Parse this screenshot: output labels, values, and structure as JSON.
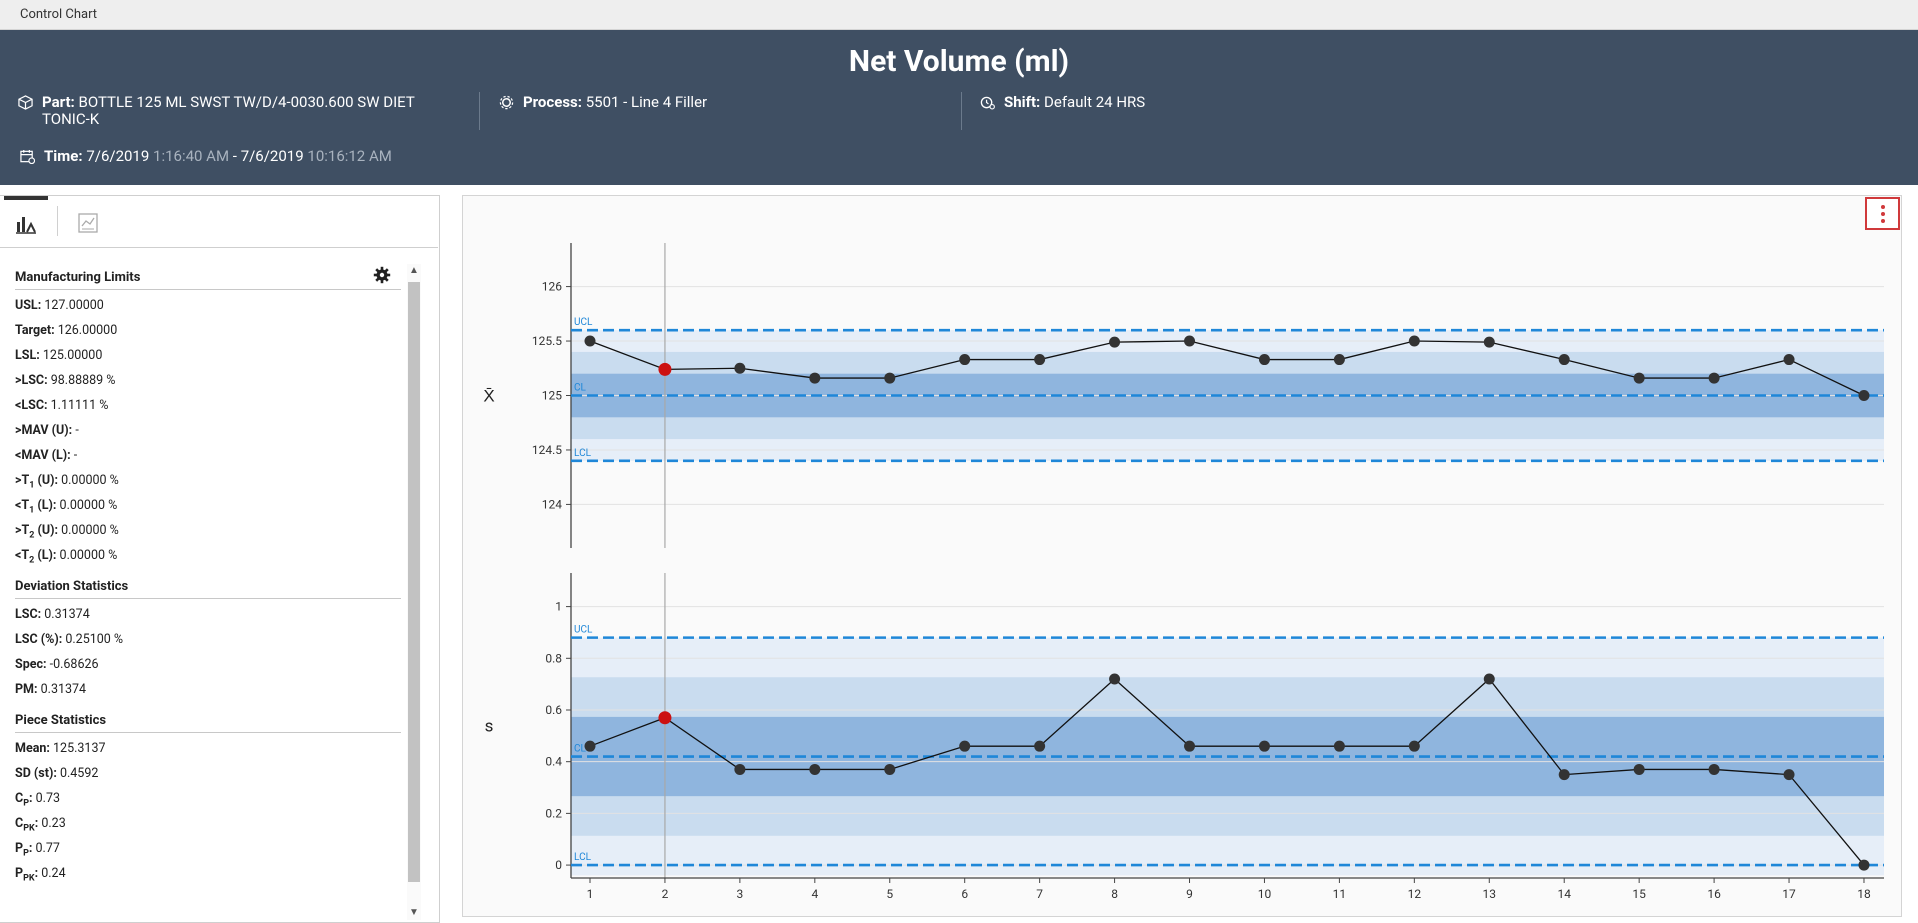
{
  "window": {
    "title": "Control Chart"
  },
  "header": {
    "title": "Net Volume (ml)",
    "part_label": "Part:",
    "part_value": "BOTTLE 125 ML SWST TW/D/4-0030.600 SW DIET",
    "part_value_line2": "TONIC-K",
    "process_label": "Process:",
    "process_value": "5501 - Line 4 Filler",
    "shift_label": "Shift:",
    "shift_value": "Default 24 HRS",
    "time_label": "Time:",
    "time_start_date": "7/6/2019",
    "time_start_time": "1:16:40 AM",
    "time_sep": "-",
    "time_end_date": "7/6/2019",
    "time_end_time": "10:16:12 AM"
  },
  "sidebar": {
    "sections": [
      {
        "title": "Manufacturing Limits",
        "rows": [
          {
            "label": "USL:",
            "value": "127.00000"
          },
          {
            "label": "Target:",
            "value": "126.00000"
          },
          {
            "label": "LSL:",
            "value": "125.00000"
          },
          {
            "label": ">LSC:",
            "value": "98.88889 %"
          },
          {
            "label": "<LSC:",
            "value": "1.11111 %"
          },
          {
            "label": ">MAV (U):",
            "value": "-"
          },
          {
            "label": "<MAV (L):",
            "value": "-"
          },
          {
            "label": ">T",
            "sub": "1",
            "label_tail": " (U):",
            "value": "0.00000 %"
          },
          {
            "label": "<T",
            "sub": "1",
            "label_tail": " (L):",
            "value": "0.00000 %"
          },
          {
            "label": ">T",
            "sub": "2",
            "label_tail": " (U):",
            "value": "0.00000 %"
          },
          {
            "label": "<T",
            "sub": "2",
            "label_tail": " (L):",
            "value": "0.00000 %"
          }
        ]
      },
      {
        "title": "Deviation Statistics",
        "rows": [
          {
            "label": "LSC:",
            "value": "0.31374"
          },
          {
            "label": "LSC (%):",
            "value": "0.25100 %"
          },
          {
            "label": "Spec:",
            "value": "-0.68626"
          },
          {
            "label": "PM:",
            "value": "0.31374"
          }
        ]
      },
      {
        "title": "Piece Statistics",
        "rows": [
          {
            "label": "Mean:",
            "value": "125.3137"
          },
          {
            "label": "SD (st):",
            "value": "0.4592"
          },
          {
            "label": "C",
            "sub": "P",
            "label_tail": ":",
            "value": "0.73"
          },
          {
            "label": "C",
            "sub": "PK",
            "label_tail": ":",
            "value": "0.23"
          },
          {
            "label": "P",
            "sub": "P",
            "label_tail": ":",
            "value": "0.77"
          },
          {
            "label": "P",
            "sub": "PK",
            "label_tail": ":",
            "value": "0.24"
          }
        ]
      }
    ]
  },
  "colors": {
    "header_bg": "#3f4f63",
    "limit_line": "#1f87d8",
    "band_outer": "#e6eef8",
    "band_mid": "#c9dcef",
    "band_inner": "#8fb5de",
    "point": "#333333",
    "highlight_point": "#cc1111"
  },
  "chart_data": [
    {
      "type": "line",
      "title": "",
      "ylabel": "X̄",
      "xlabel": "",
      "x": [
        1,
        2,
        3,
        4,
        5,
        6,
        7,
        8,
        9,
        10,
        11,
        12,
        13,
        14,
        15,
        16,
        17,
        18
      ],
      "values": [
        125.5,
        125.24,
        125.25,
        125.16,
        125.16,
        125.33,
        125.33,
        125.49,
        125.5,
        125.33,
        125.33,
        125.5,
        125.49,
        125.33,
        125.16,
        125.16,
        125.33,
        125.0
      ],
      "highlight_index": 1,
      "ylim": [
        123.6,
        126.4
      ],
      "yticks": [
        124,
        124.5,
        125,
        125.5,
        126
      ],
      "limits": {
        "UCL": 125.6,
        "CL": 125.0,
        "LCL": 124.4
      },
      "limit_labels": [
        "UCL",
        "CL",
        "LCL"
      ],
      "grid": true
    },
    {
      "type": "line",
      "title": "",
      "ylabel": "s",
      "xlabel": "",
      "x": [
        1,
        2,
        3,
        4,
        5,
        6,
        7,
        8,
        9,
        10,
        11,
        12,
        13,
        14,
        15,
        16,
        17,
        18
      ],
      "xticks": [
        "1",
        "2",
        "3",
        "4",
        "5",
        "6",
        "7",
        "8",
        "9",
        "10",
        "11",
        "12",
        "13",
        "14",
        "15",
        "16",
        "17",
        "18"
      ],
      "values": [
        0.46,
        0.57,
        0.37,
        0.37,
        0.37,
        0.46,
        0.46,
        0.72,
        0.46,
        0.46,
        0.46,
        0.46,
        0.72,
        0.35,
        0.37,
        0.37,
        0.35,
        0.0
      ],
      "highlight_index": 1,
      "ylim": [
        -0.05,
        1.13
      ],
      "yticks": [
        0,
        0.2,
        0.4,
        0.6,
        0.8,
        1
      ],
      "limits": {
        "UCL": 0.88,
        "CL": 0.42,
        "LCL": 0.0
      },
      "limit_labels": [
        "UCL",
        "CL",
        "LCL"
      ],
      "grid": true
    }
  ]
}
